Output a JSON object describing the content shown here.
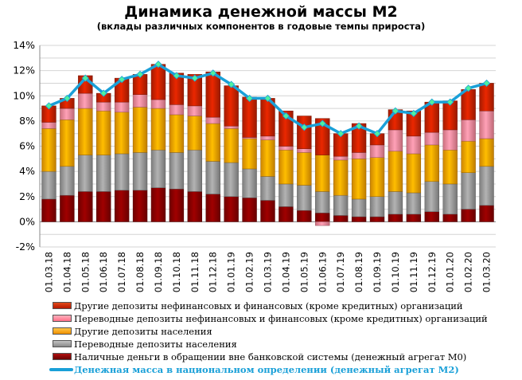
{
  "chart_data": {
    "type": "bar",
    "stacked": true,
    "title": "Динамика денежной массы М2",
    "subtitle": "(вклады различных компонентов в годовые темпы прироста)",
    "categories": [
      "01.03.18",
      "01.04.18",
      "01.05.18",
      "01.06.18",
      "01.07.18",
      "01.08.18",
      "01.09.18",
      "01.10.18",
      "01.11.18",
      "01.12.18",
      "01.01.19",
      "01.02.19",
      "01.03.19",
      "01.04.19",
      "01.05.19",
      "01.06.19",
      "01.07.19",
      "01.08.19",
      "01.09.19",
      "01.10.19",
      "01.11.19",
      "01.12.19",
      "01.01.20",
      "01.02.20",
      "01.03.20"
    ],
    "y_ticks": [
      "-2%",
      "0%",
      "2%",
      "4%",
      "6%",
      "8%",
      "10%",
      "12%",
      "14%"
    ],
    "ylim": [
      -2,
      14
    ],
    "grid": true,
    "legend_position": "bottom",
    "series": [
      {
        "name": "Наличные деньги в обращении вне банковской системы (денежный агрегат М0)",
        "color": "#8b0000",
        "values": [
          1.8,
          2.1,
          2.4,
          2.4,
          2.5,
          2.5,
          2.7,
          2.6,
          2.4,
          2.2,
          2.0,
          1.9,
          1.7,
          1.2,
          0.9,
          0.7,
          0.5,
          0.4,
          0.4,
          0.6,
          0.6,
          0.8,
          0.6,
          1.0,
          1.3
        ]
      },
      {
        "name": "Переводные депозиты населения",
        "color": "#9c9c9c",
        "values": [
          2.2,
          2.3,
          2.9,
          2.9,
          2.9,
          3.0,
          3.0,
          2.9,
          3.3,
          2.6,
          2.7,
          2.3,
          1.9,
          1.8,
          2.0,
          1.7,
          1.6,
          1.4,
          1.6,
          1.8,
          1.7,
          2.4,
          2.4,
          2.9,
          3.1
        ]
      },
      {
        "name": "Другие депозиты населения",
        "color": "#ffa500",
        "values": [
          3.4,
          3.7,
          3.7,
          3.5,
          3.3,
          3.6,
          3.3,
          3.0,
          2.7,
          3.0,
          2.7,
          2.4,
          2.9,
          2.7,
          2.6,
          2.9,
          2.8,
          3.2,
          3.1,
          3.2,
          3.1,
          2.9,
          2.7,
          2.5,
          2.2
        ]
      },
      {
        "name": "Переводные депозиты нефинансовых и финансовых (кроме кредитных)  организаций",
        "color": "#ff8c9f",
        "values": [
          0.5,
          0.9,
          1.2,
          0.7,
          0.8,
          1.0,
          0.7,
          0.8,
          0.8,
          0.5,
          0.2,
          0.1,
          0.3,
          0.3,
          0.3,
          -0.3,
          0.3,
          0.5,
          1.0,
          1.7,
          1.4,
          1.0,
          1.6,
          1.7,
          2.2
        ]
      },
      {
        "name": "Другие депозиты нефинансовых и финансовых (кроме кредитных)  организаций",
        "color": "#cc2200",
        "values": [
          1.3,
          0.8,
          1.4,
          0.7,
          1.9,
          1.6,
          2.8,
          2.5,
          2.5,
          3.6,
          3.2,
          3.2,
          3.0,
          2.8,
          2.6,
          2.9,
          1.8,
          2.3,
          0.9,
          1.6,
          2.0,
          2.4,
          2.3,
          2.4,
          2.2
        ]
      }
    ],
    "line": {
      "name": "Денежная масса в национальном  определении  (денежный агрегат  М2)",
      "color": "#1aa0d8",
      "values": [
        9.2,
        9.8,
        11.4,
        10.2,
        11.3,
        11.7,
        12.5,
        11.6,
        11.4,
        11.8,
        10.9,
        9.8,
        9.8,
        8.4,
        7.5,
        7.8,
        7.0,
        7.6,
        7.0,
        8.8,
        8.6,
        9.5,
        9.5,
        10.6,
        11.0
      ]
    }
  }
}
